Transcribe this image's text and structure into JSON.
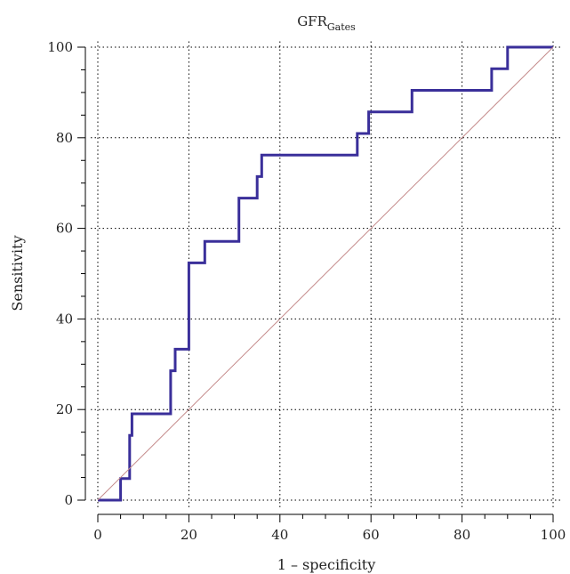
{
  "chart_data": {
    "type": "line",
    "title": {
      "main": "GFR",
      "subscript": "Gates"
    },
    "xlabel": "1 – specificity",
    "ylabel": "Sensitivity",
    "xlim": [
      0,
      100
    ],
    "ylim": [
      0,
      100
    ],
    "x_ticks": [
      "0",
      "20",
      "40",
      "60",
      "80",
      "100"
    ],
    "y_ticks": [
      "0",
      "20",
      "40",
      "60",
      "80",
      "100"
    ],
    "grid": true,
    "series": [
      {
        "style": "step",
        "color": "#3a2f9a",
        "x": [
          0,
          5,
          5,
          7,
          7,
          7.5,
          7.5,
          8.5,
          8.5,
          16,
          16,
          17,
          17,
          20,
          20,
          23.5,
          23.5,
          31,
          31,
          35,
          35,
          36,
          36,
          57,
          57,
          59.5,
          59.5,
          69,
          69,
          86.5,
          86.5,
          90,
          90,
          100
        ],
        "y": [
          0,
          0,
          4.76,
          4.76,
          14.29,
          14.29,
          19.05,
          19.05,
          19.05,
          19.05,
          28.57,
          28.57,
          33.33,
          33.33,
          52.38,
          52.38,
          57.14,
          57.14,
          66.67,
          66.67,
          71.43,
          71.43,
          76.19,
          76.19,
          80.95,
          80.95,
          85.71,
          85.71,
          90.48,
          90.48,
          95.24,
          95.24,
          100,
          100
        ]
      },
      {
        "style": "reference",
        "color": "#c48a8a",
        "x": [
          0,
          100
        ],
        "y": [
          0,
          100
        ]
      }
    ]
  }
}
